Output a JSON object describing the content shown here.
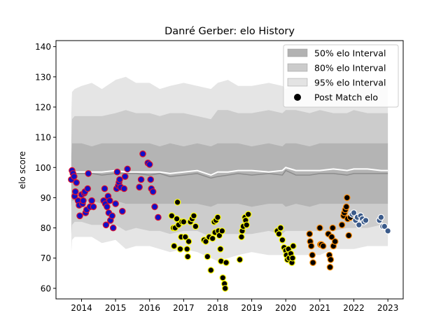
{
  "chart_data": {
    "type": "scatter",
    "title": "Danré Gerber: elo History",
    "xlabel": "",
    "ylabel": "elo score",
    "xlim": [
      2013.25,
      2023.45
    ],
    "ylim": [
      56.5,
      142.0
    ],
    "x_ticks": [
      2014,
      2015,
      2016,
      2017,
      2018,
      2019,
      2020,
      2021,
      2022,
      2023
    ],
    "x_tick_labels": [
      "2014",
      "2015",
      "2016",
      "2017",
      "2018",
      "2019",
      "2020",
      "2021",
      "2022",
      "2023"
    ],
    "y_ticks": [
      60,
      70,
      80,
      90,
      100,
      110,
      120,
      130,
      140
    ],
    "y_tick_labels": [
      "60",
      "70",
      "80",
      "90",
      "100",
      "110",
      "120",
      "130",
      "140"
    ],
    "grid": false,
    "legend": {
      "position": "top-right",
      "entries": [
        {
          "label": "50% elo Interval",
          "kind": "patch",
          "color": "#b2b2b2"
        },
        {
          "label": "80% elo Interval",
          "kind": "patch",
          "color": "#cbcbcb"
        },
        {
          "label": "95% elo Interval",
          "kind": "patch",
          "color": "#e3e3e3"
        },
        {
          "label": "Post Match elo",
          "kind": "marker",
          "color": "#000000"
        }
      ]
    },
    "colors": {
      "band95": "#e5e5e5",
      "band80": "#cccccc",
      "band50": "#b4b4b4",
      "median_line": "#8c8c8c",
      "mean_line": "#ffffff",
      "points_blue_era": {
        "fill": "#1010c8",
        "edge": "#e0102a"
      },
      "points_black_era": {
        "fill": "#000000",
        "edge": "#ffff00"
      },
      "points_orange_era": {
        "fill": "#000000",
        "edge": "#ff8c00"
      },
      "points_navy_era": {
        "fill": "#3a5a8a",
        "edge": "#ffffff"
      }
    },
    "bands": {
      "x": [
        2013.7,
        2013.72,
        2013.8,
        2014.0,
        2014.3,
        2014.6,
        2015.0,
        2015.3,
        2015.6,
        2016.0,
        2016.3,
        2016.6,
        2017.0,
        2017.4,
        2017.8,
        2018.0,
        2018.3,
        2018.6,
        2019.0,
        2019.5,
        2019.9,
        2020.0,
        2020.3,
        2020.7,
        2021.0,
        2021.4,
        2021.8,
        2022.0,
        2022.4,
        2022.8,
        2023.0
      ],
      "upper95": [
        118,
        125,
        126,
        127,
        128,
        126,
        129,
        130,
        128,
        128,
        126,
        127,
        128,
        127,
        126,
        128,
        129,
        127,
        127,
        128,
        127,
        126,
        128,
        127,
        128,
        127,
        127,
        128,
        127,
        127,
        127
      ],
      "lower95": [
        72,
        76,
        77,
        77,
        77,
        75,
        76,
        73,
        74,
        74,
        73,
        72,
        73,
        72,
        70,
        69,
        70,
        71,
        72,
        71,
        71,
        71,
        71,
        71,
        71,
        73,
        73,
        73,
        74,
        74,
        74
      ],
      "upper80": [
        109,
        116,
        117,
        117,
        117,
        117,
        118,
        119,
        118,
        118,
        117,
        118,
        118,
        117,
        116,
        119,
        119,
        118,
        118,
        119,
        118,
        119,
        119,
        118,
        119,
        118,
        118,
        119,
        118,
        118,
        118
      ],
      "lower80": [
        78,
        81,
        82,
        82,
        81,
        81,
        81,
        79,
        80,
        79,
        79,
        78,
        79,
        79,
        77,
        78,
        78,
        78,
        78,
        79,
        78,
        79,
        79,
        79,
        79,
        79,
        80,
        80,
        80,
        81,
        81
      ],
      "upper50": [
        104,
        108,
        108,
        108,
        107,
        108,
        108,
        108,
        108,
        108,
        107,
        108,
        107,
        108,
        107,
        108,
        108,
        108,
        107,
        108,
        107,
        108,
        108,
        107,
        108,
        108,
        108,
        108,
        108,
        108,
        108
      ],
      "lower50": [
        87,
        89,
        89,
        89,
        89,
        88,
        89,
        88,
        88,
        88,
        88,
        88,
        88,
        88,
        87,
        88,
        88,
        88,
        87,
        88,
        88,
        87,
        88,
        87,
        88,
        88,
        88,
        88,
        88,
        88,
        88
      ],
      "median": [
        97,
        98,
        98,
        98,
        98,
        97.5,
        98,
        98,
        98,
        97.5,
        98,
        97,
        97.5,
        98,
        96.5,
        97,
        97.5,
        98,
        97.5,
        98,
        97.5,
        99,
        97.5,
        97.5,
        98,
        98,
        97.5,
        98,
        98,
        98,
        98
      ],
      "mean": [
        98,
        98.5,
        98.5,
        98.5,
        98.5,
        98.5,
        99,
        98.5,
        98.5,
        98.5,
        98.5,
        98,
        98.5,
        99,
        97.5,
        98.5,
        98.5,
        99,
        99,
        98.5,
        99,
        100,
        99,
        99,
        99,
        99.5,
        99,
        99.5,
        99.5,
        99,
        99
      ]
    },
    "series": [
      {
        "style": "blue_era",
        "x": [
          2013.7,
          2013.72,
          2013.75,
          2013.78,
          2013.8,
          2013.82,
          2013.85,
          2013.9,
          2013.93,
          2013.95,
          2014.0,
          2014.03,
          2014.05,
          2014.08,
          2014.1,
          2014.12,
          2014.15,
          2014.18,
          2014.2,
          2014.25,
          2014.3,
          2014.35,
          2014.65,
          2014.68,
          2014.7,
          2014.72,
          2014.75,
          2014.78,
          2014.8,
          2014.83,
          2014.85,
          2014.9,
          2014.93,
          2015.0,
          2015.03,
          2015.05,
          2015.08,
          2015.1,
          2015.12,
          2015.15,
          2015.2,
          2015.25,
          2015.28,
          2015.35,
          2015.7,
          2015.75,
          2015.8,
          2015.95,
          2016.0,
          2016.03,
          2016.05,
          2016.1,
          2016.15,
          2016.25
        ],
        "y": [
          96,
          99,
          98,
          97,
          90.5,
          92,
          95,
          89,
          87.5,
          84,
          91,
          88,
          89,
          91.5,
          92,
          85,
          86,
          93,
          98,
          87,
          89,
          87,
          89,
          93,
          88,
          81,
          87,
          90.5,
          85,
          89,
          82.5,
          84,
          80,
          88,
          93,
          98.5,
          94,
          95,
          96,
          93.5,
          85.5,
          93,
          97,
          99.5,
          93.5,
          96,
          104.5,
          101.5,
          101,
          96,
          93,
          92,
          87,
          83.5
        ]
      },
      {
        "style": "black_era",
        "x": [
          2016.65,
          2016.7,
          2016.72,
          2016.75,
          2016.8,
          2016.82,
          2016.85,
          2016.9,
          2016.93,
          2016.95,
          2017.0,
          2017.05,
          2017.1,
          2017.12,
          2017.15,
          2017.2,
          2017.25,
          2017.3,
          2017.35,
          2017.6,
          2017.65,
          2017.7,
          2017.75,
          2017.8,
          2017.85,
          2017.9,
          2017.92,
          2017.95,
          2018.0,
          2018.02,
          2018.05,
          2018.08,
          2018.1,
          2018.13,
          2018.15,
          2018.2,
          2018.22,
          2018.25,
          2018.65,
          2018.7,
          2018.72,
          2018.75,
          2018.8,
          2018.82,
          2018.85,
          2018.9,
          2019.75,
          2019.8,
          2019.85,
          2019.9,
          2019.95,
          2020.0,
          2020.02,
          2020.05,
          2020.08,
          2020.1,
          2020.15,
          2020.18,
          2020.2,
          2020.22
        ],
        "y": [
          84,
          80,
          74,
          80,
          83,
          88.5,
          81,
          73,
          77,
          82,
          82,
          77,
          73,
          70.5,
          75.5,
          82,
          83,
          84,
          80.5,
          76,
          75.5,
          70.5,
          77,
          66,
          76.5,
          82,
          78.5,
          82.5,
          83.5,
          79,
          77.5,
          73,
          69,
          79,
          63.5,
          61.5,
          60,
          68.5,
          69.5,
          77,
          79,
          80.5,
          83.5,
          82.5,
          81,
          84.5,
          79,
          78,
          80,
          76,
          73.5,
          72.5,
          71,
          69.5,
          73,
          70,
          71.5,
          68.5,
          70,
          74
        ]
      },
      {
        "style": "orange_era",
        "x": [
          2020.7,
          2020.72,
          2020.75,
          2020.78,
          2020.8,
          2021.0,
          2021.02,
          2021.05,
          2021.1,
          2021.25,
          2021.28,
          2021.3,
          2021.32,
          2021.35,
          2021.38,
          2021.4,
          2021.45,
          2021.65,
          2021.7,
          2021.72,
          2021.75,
          2021.78,
          2021.8,
          2021.82,
          2021.85,
          2021.9
        ],
        "y": [
          78,
          75.5,
          74,
          71,
          68.5,
          80,
          74.5,
          74.5,
          74,
          78,
          71,
          67,
          69.5,
          77,
          80,
          74,
          75.5,
          81,
          84,
          85,
          86,
          87,
          90,
          83,
          77.5,
          83.5
        ]
      },
      {
        "style": "navy_era",
        "x": [
          2021.95,
          2022.0,
          2022.05,
          2022.1,
          2022.15,
          2022.2,
          2022.25,
          2022.3,
          2022.35,
          2022.75,
          2022.8,
          2022.85,
          2022.9,
          2023.0
        ],
        "y": [
          84.5,
          85,
          82.5,
          83.5,
          81,
          84,
          83,
          82,
          82.5,
          82.5,
          83.5,
          80.5,
          80.5,
          79
        ]
      }
    ]
  }
}
